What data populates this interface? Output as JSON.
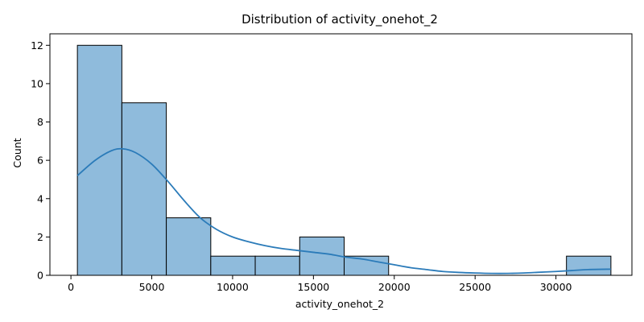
{
  "chart_data": {
    "type": "bar",
    "subtype": "histogram-with-kde",
    "title": "Distribution of activity_onehot_2",
    "xlabel": "activity_onehot_2",
    "ylabel": "Count",
    "xlim": [
      -1300,
      34700
    ],
    "ylim": [
      0,
      12.6
    ],
    "xticks": [
      0,
      5000,
      10000,
      15000,
      20000,
      25000,
      30000
    ],
    "yticks": [
      0,
      2,
      4,
      6,
      8,
      10,
      12
    ],
    "bins": [
      {
        "x0": 400,
        "x1": 3150,
        "count": 12
      },
      {
        "x0": 3150,
        "x1": 5900,
        "count": 9
      },
      {
        "x0": 5900,
        "x1": 8650,
        "count": 3
      },
      {
        "x0": 8650,
        "x1": 11400,
        "count": 1
      },
      {
        "x0": 11400,
        "x1": 14150,
        "count": 1
      },
      {
        "x0": 14150,
        "x1": 16900,
        "count": 2
      },
      {
        "x0": 16900,
        "x1": 19650,
        "count": 1
      },
      {
        "x0": 19650,
        "x1": 22400,
        "count": 0
      },
      {
        "x0": 22400,
        "x1": 25150,
        "count": 0
      },
      {
        "x0": 25150,
        "x1": 27900,
        "count": 0
      },
      {
        "x0": 27900,
        "x1": 30650,
        "count": 0
      },
      {
        "x0": 30650,
        "x1": 33400,
        "count": 1
      }
    ],
    "kde": {
      "x": [
        400,
        1500,
        2500,
        3200,
        4000,
        5000,
        6000,
        7000,
        8000,
        9000,
        10000,
        11000,
        12000,
        13000,
        14000,
        15000,
        16000,
        17000,
        18000,
        19000,
        20000,
        21000,
        22000,
        23000,
        24000,
        25000,
        26000,
        27000,
        28000,
        29000,
        30000,
        31000,
        32000,
        33400
      ],
      "y": [
        5.2,
        6.0,
        6.5,
        6.6,
        6.4,
        5.8,
        4.9,
        3.9,
        3.0,
        2.4,
        2.0,
        1.75,
        1.55,
        1.4,
        1.3,
        1.2,
        1.1,
        0.95,
        0.85,
        0.7,
        0.55,
        0.4,
        0.3,
        0.2,
        0.15,
        0.12,
        0.1,
        0.1,
        0.12,
        0.16,
        0.2,
        0.25,
        0.3,
        0.32
      ]
    },
    "grid": false,
    "colors": {
      "bar_fill": "#8fbbdc",
      "bar_edge": "#000000",
      "kde_line": "#2b7bb9",
      "axis": "#000000"
    }
  }
}
